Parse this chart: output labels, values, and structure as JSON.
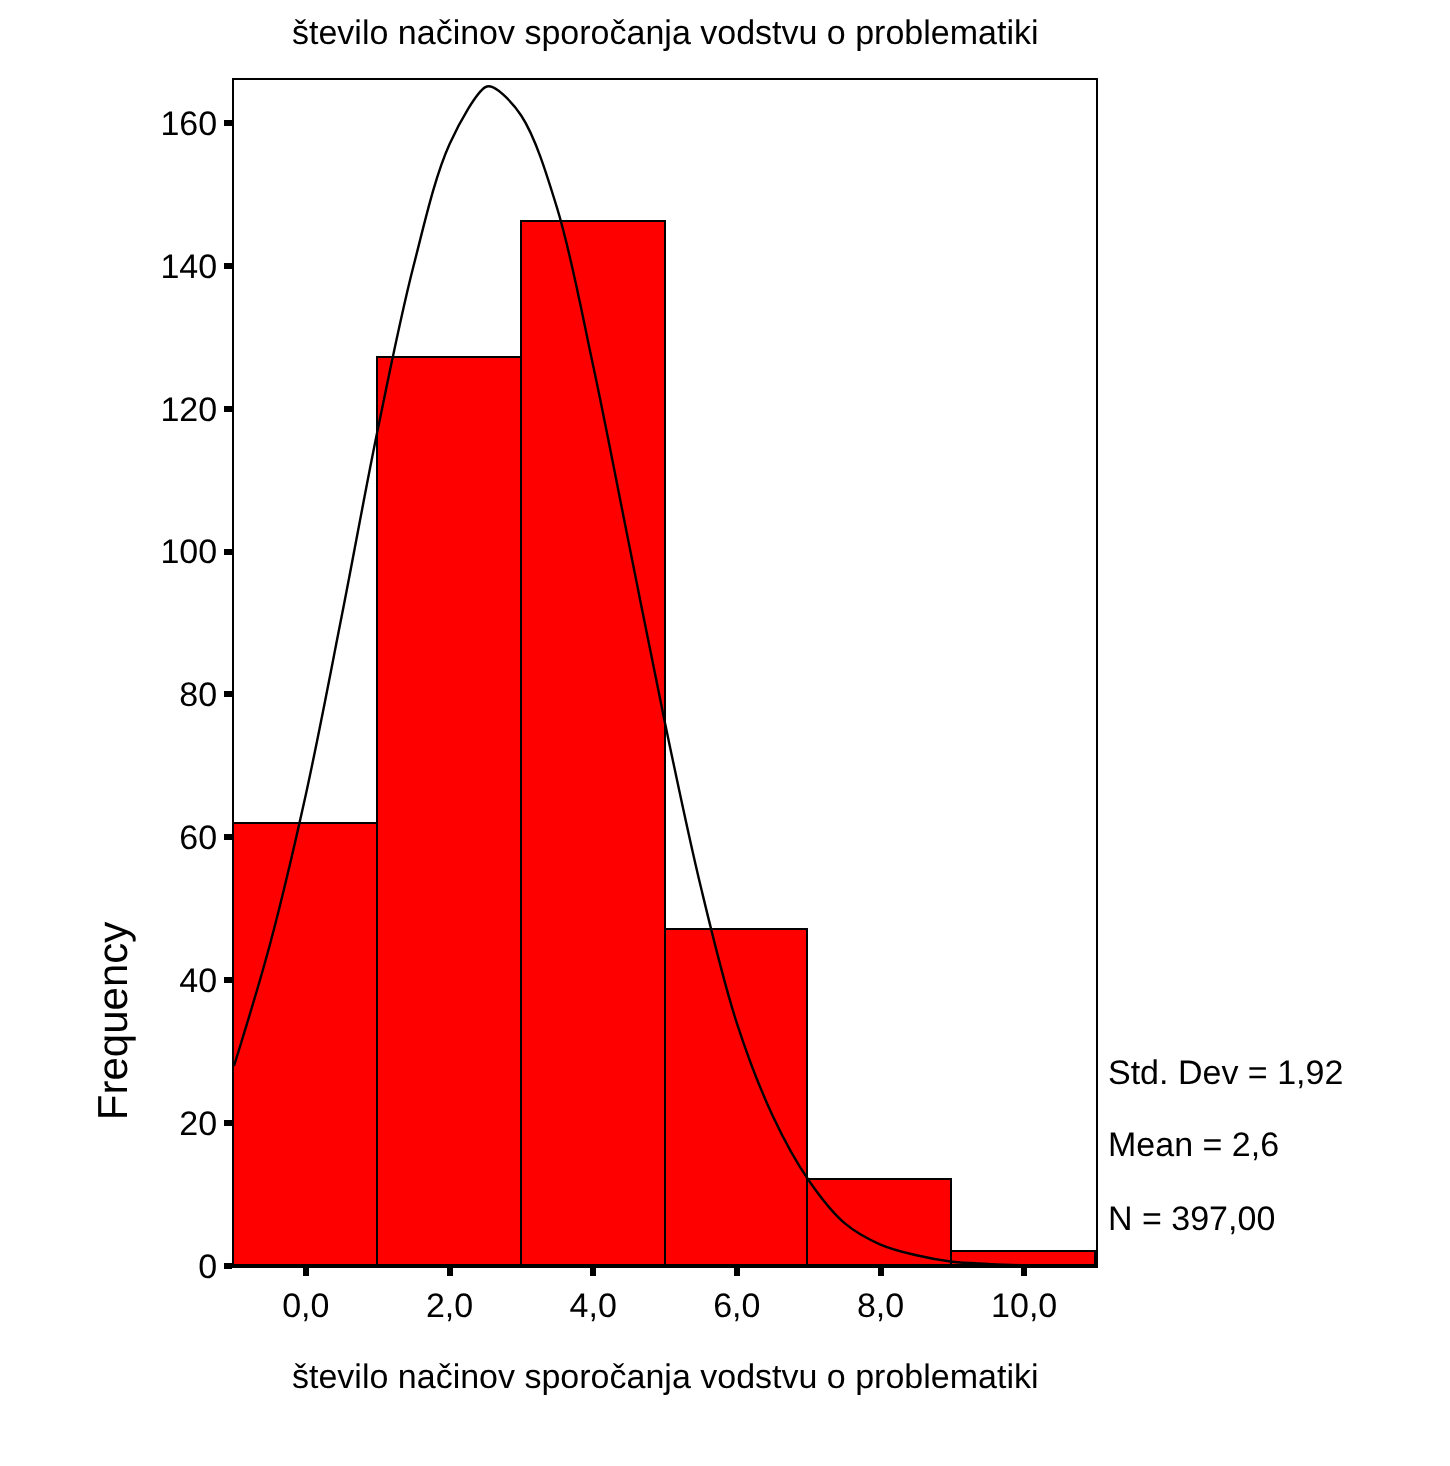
{
  "chart_data": {
    "type": "histogram",
    "title": "število načinov sporočanja vodstvu o problematiki",
    "xlabel": "število načinov sporočanja vodstvu o problematiki",
    "ylabel": "Frequency",
    "bins": [
      -1,
      1,
      3,
      5,
      7,
      9,
      11
    ],
    "values": [
      62,
      127,
      146,
      47,
      12,
      2
    ],
    "color": "#ff0000",
    "series": [
      {
        "type": "line",
        "color": "#000000",
        "x": [
          -1,
          -0.5,
          0,
          0.5,
          1,
          1.5,
          2,
          2.5,
          2.6,
          3,
          3.5,
          4,
          4.5,
          5,
          5.5,
          6,
          6.5,
          7,
          7.5,
          8,
          8.5,
          9,
          9.5,
          10,
          11
        ],
        "values": [
          28,
          45,
          66,
          91,
          117,
          140,
          157,
          165,
          165,
          161,
          148,
          126,
          101,
          76,
          53,
          34,
          21,
          12,
          6,
          3,
          1.5,
          0.6,
          0.3,
          0.1,
          0
        ]
      }
    ],
    "xlim": [
      -1,
      11
    ],
    "ylim": [
      0,
      166
    ],
    "xticks": [
      {
        "value": 0,
        "label": "0,0"
      },
      {
        "value": 2,
        "label": "2,0"
      },
      {
        "value": 4,
        "label": "4,0"
      },
      {
        "value": 6,
        "label": "6,0"
      },
      {
        "value": 8,
        "label": "8,0"
      },
      {
        "value": 10,
        "label": "10,0"
      }
    ],
    "yticks": [
      0,
      20,
      40,
      60,
      80,
      100,
      120,
      140,
      160
    ],
    "annotations": [
      "Std. Dev = 1,92",
      "Mean = 2,6",
      "N = 397,00"
    ],
    "marker": "none"
  }
}
